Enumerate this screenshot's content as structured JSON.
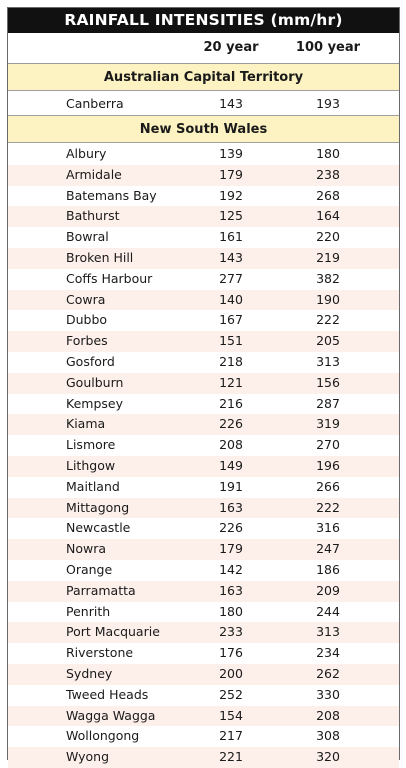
{
  "title": "RAINFALL INTENSITIES (mm/hr)",
  "headers": {
    "col_20": "20 year",
    "col_100": "100 year"
  },
  "sections": {
    "act": {
      "name": "Australian Capital Territory",
      "rows": [
        {
          "city": "Canberra",
          "y20": "143",
          "y100": "193"
        }
      ]
    },
    "nsw": {
      "name": "New South Wales",
      "rows": [
        {
          "city": "Albury",
          "y20": "139",
          "y100": "180"
        },
        {
          "city": "Armidale",
          "y20": "179",
          "y100": "238"
        },
        {
          "city": "Batemans Bay",
          "y20": "192",
          "y100": "268"
        },
        {
          "city": "Bathurst",
          "y20": "125",
          "y100": "164"
        },
        {
          "city": "Bowral",
          "y20": "161",
          "y100": "220"
        },
        {
          "city": "Broken Hill",
          "y20": "143",
          "y100": "219"
        },
        {
          "city": "Coffs Harbour",
          "y20": "277",
          "y100": "382"
        },
        {
          "city": "Cowra",
          "y20": "140",
          "y100": "190"
        },
        {
          "city": "Dubbo",
          "y20": "167",
          "y100": "222"
        },
        {
          "city": "Forbes",
          "y20": "151",
          "y100": "205"
        },
        {
          "city": "Gosford",
          "y20": "218",
          "y100": "313"
        },
        {
          "city": "Goulburn",
          "y20": "121",
          "y100": "156"
        },
        {
          "city": "Kempsey",
          "y20": "216",
          "y100": "287"
        },
        {
          "city": "Kiama",
          "y20": "226",
          "y100": "319"
        },
        {
          "city": "Lismore",
          "y20": "208",
          "y100": "270"
        },
        {
          "city": "Lithgow",
          "y20": "149",
          "y100": "196"
        },
        {
          "city": "Maitland",
          "y20": "191",
          "y100": "266"
        },
        {
          "city": "Mittagong",
          "y20": "163",
          "y100": "222"
        },
        {
          "city": "Newcastle",
          "y20": "226",
          "y100": "316"
        },
        {
          "city": "Nowra",
          "y20": "179",
          "y100": "247"
        },
        {
          "city": "Orange",
          "y20": "142",
          "y100": "186"
        },
        {
          "city": "Parramatta",
          "y20": "163",
          "y100": "209"
        },
        {
          "city": "Penrith",
          "y20": "180",
          "y100": "244"
        },
        {
          "city": "Port Macquarie",
          "y20": "233",
          "y100": "313"
        },
        {
          "city": "Riverstone",
          "y20": "176",
          "y100": "234"
        },
        {
          "city": "Sydney",
          "y20": "200",
          "y100": "262"
        },
        {
          "city": "Tweed Heads",
          "y20": "252",
          "y100": "330"
        },
        {
          "city": "Wagga Wagga",
          "y20": "154",
          "y100": "208"
        },
        {
          "city": "Wollongong",
          "y20": "217",
          "y100": "308"
        },
        {
          "city": "Wyong",
          "y20": "221",
          "y100": "320"
        }
      ]
    }
  },
  "colors": {
    "title_bg": "#111111",
    "section_bg": "#fdf3c2",
    "row_shade": "#fdf0ea"
  }
}
